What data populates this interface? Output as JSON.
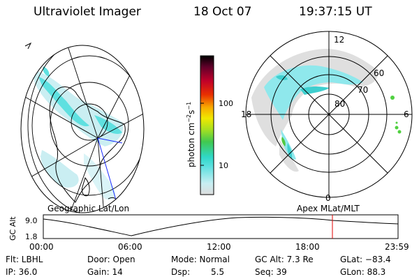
{
  "header": {
    "title": "Ultraviolet Imager",
    "date": "18 Oct 07",
    "time": "19:37:15 UT"
  },
  "left_panel": {
    "label": "Geographic Lat/Lon"
  },
  "right_panel": {
    "label": "Apex MLat/MLT",
    "mlt_labels": [
      "12",
      "18",
      "6",
      "0"
    ],
    "mlat_labels": [
      "60",
      "70",
      "80"
    ]
  },
  "colorbar": {
    "label": "photon cm",
    "label_sup": "−2",
    "label_mid": "s",
    "label_sup2": "−1",
    "ticks": [
      "100",
      "10"
    ],
    "colors": [
      "#dcdcdc",
      "#c8eef2",
      "#5fe0e0",
      "#30d8c8",
      "#40c850",
      "#a8e020",
      "#f0e800",
      "#f8a800",
      "#e83000",
      "#c0002a",
      "#60002a",
      "#000000"
    ]
  },
  "altitude_plot": {
    "ylabel": "GC Alt",
    "yticks": [
      "9.0",
      "1.8"
    ],
    "xticks": [
      "00:00",
      "06:00",
      "12:00",
      "18:00",
      "23:59"
    ],
    "marker_color": "#e00000"
  },
  "info": {
    "flt": "Flt: LBHL",
    "door": "Door: Open",
    "mode": "Mode: Normal",
    "gc_alt": "GC Alt: 7.3 Re",
    "glat": "GLat: −83.4",
    "ip": "IP: 36.0",
    "gain": "Gain: 14",
    "dsp_label": "Dsp:",
    "dsp_value": "5.5",
    "seq": "Seq: 39",
    "glon": "GLon: 88.3"
  }
}
